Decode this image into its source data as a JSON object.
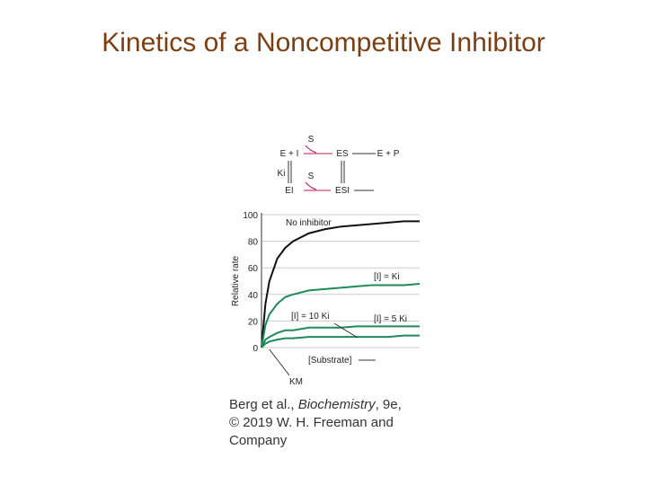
{
  "chart_data": {
    "type": "line",
    "title": "Kinetics of a Noncompetitive Inhibitor",
    "y_label": "Relative rate",
    "x_label": "[Substrate]",
    "km_label": "KM",
    "x": [
      0,
      0.25,
      0.5,
      1,
      1.5,
      2,
      3,
      4,
      5,
      6,
      7,
      8,
      9,
      10
    ],
    "xlim": [
      0,
      10
    ],
    "ylim": [
      0,
      100
    ],
    "yticks": [
      0,
      20,
      40,
      60,
      80,
      100
    ],
    "grid": true,
    "series": [
      {
        "name": "No inhibitor",
        "color": "#111111",
        "values": [
          0,
          33,
          50,
          67,
          75,
          80,
          86,
          89,
          91,
          92,
          93,
          94,
          95,
          95
        ]
      },
      {
        "name": "[I] = Ki",
        "color": "#1e8a5a",
        "values": [
          0,
          17,
          25,
          33,
          38,
          40,
          43,
          44,
          45,
          46,
          47,
          47,
          47,
          48
        ]
      },
      {
        "name": "[I] = 5 Ki",
        "color": "#1e8a5a",
        "values": [
          0,
          6,
          8,
          11,
          13,
          13,
          15,
          15,
          15,
          16,
          16,
          16,
          16,
          16
        ]
      },
      {
        "name": "[I] = 10 Ki",
        "color": "#1e8a5a",
        "values": [
          0,
          3,
          4.5,
          6,
          7,
          7,
          8,
          8,
          8,
          8,
          8,
          8,
          9,
          9
        ]
      }
    ]
  },
  "scheme": {
    "s_top": "S",
    "e_i": "E + I",
    "es": "ES",
    "e_p": "E + P",
    "ki": "Ki",
    "s_mid": "S",
    "ei": "EI",
    "esi": "ESI"
  },
  "credit": {
    "line1_a": "Berg et al., ",
    "line1_b": "Biochemistry",
    "line1_c": ", 9e,",
    "line2": "© 2019 W. H. Freeman and",
    "line3": "Company"
  }
}
